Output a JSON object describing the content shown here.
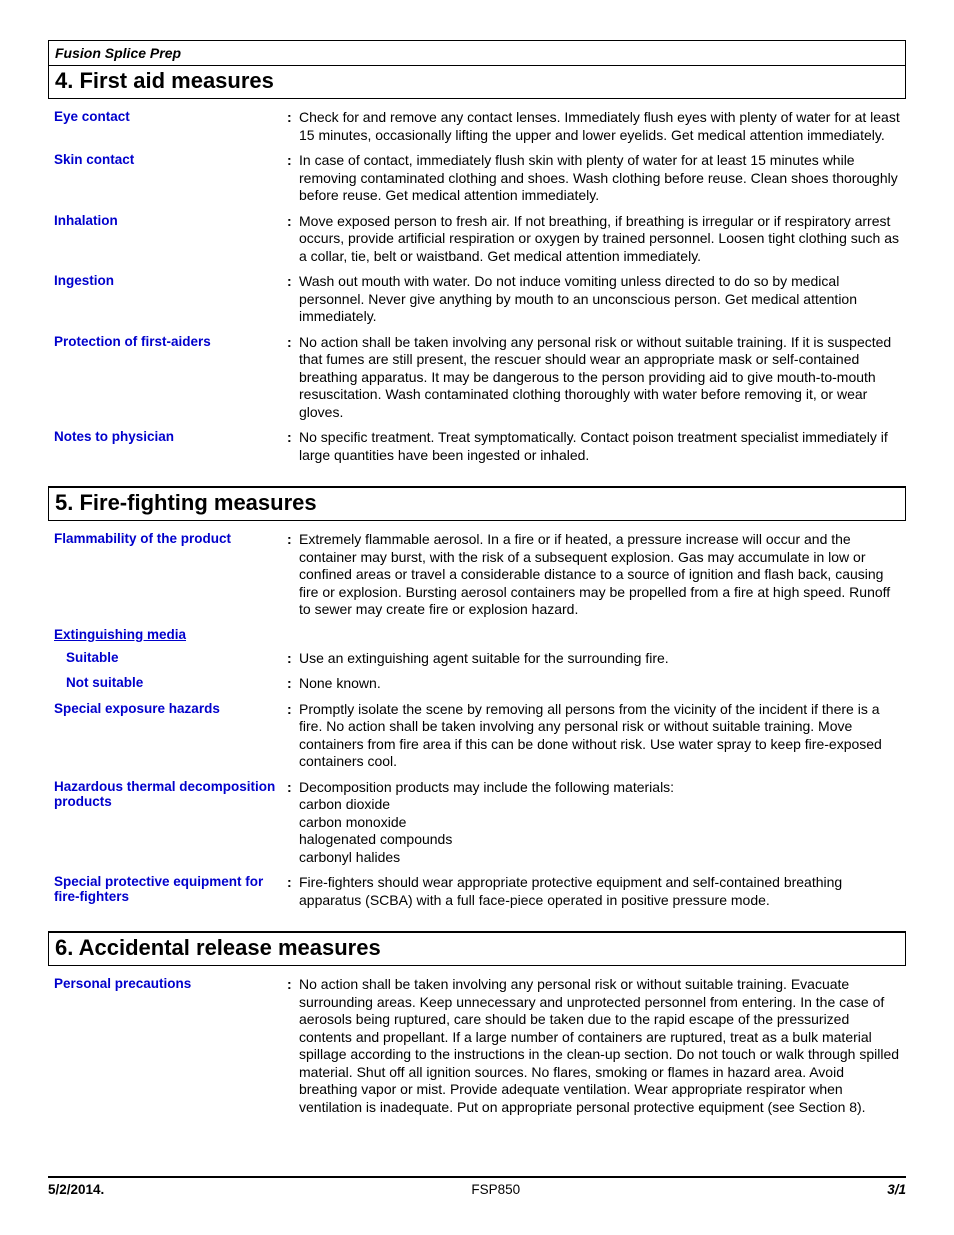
{
  "document": {
    "product_name": "Fusion Splice Prep"
  },
  "sections": {
    "first_aid": {
      "heading": "4. First aid measures",
      "rows": [
        {
          "label": "Eye contact",
          "value": "Check for and remove any contact lenses.  Immediately flush eyes with plenty of water for at least 15 minutes, occasionally lifting the upper and lower eyelids.  Get medical attention immediately."
        },
        {
          "label": "Skin contact",
          "value": "In case of contact, immediately flush skin with plenty of water for at least 15 minutes while removing contaminated clothing and shoes.  Wash clothing before reuse.  Clean shoes thoroughly before reuse.  Get medical attention immediately."
        },
        {
          "label": "Inhalation",
          "value": "Move exposed person to fresh air.  If not breathing, if breathing is irregular or if respiratory arrest occurs, provide artificial respiration or oxygen by trained personnel.  Loosen tight clothing such as a collar, tie, belt or waistband.  Get medical attention immediately."
        },
        {
          "label": "Ingestion",
          "value": "Wash out mouth with water.  Do not induce vomiting unless directed to do so by medical personnel.  Never give anything by mouth to an unconscious person.  Get medical attention immediately."
        },
        {
          "label": "Protection of first-aiders",
          "value": "No action shall be taken involving any personal risk or without suitable training.  If it is suspected that fumes are still present, the rescuer should wear an appropriate mask or self-contained breathing apparatus.  It may be dangerous to the person providing aid to give mouth-to-mouth resuscitation.  Wash contaminated clothing thoroughly with water before removing it, or wear gloves."
        },
        {
          "label": "Notes to physician",
          "value": "No specific treatment.  Treat symptomatically.  Contact poison treatment specialist immediately if large quantities have been ingested or inhaled."
        }
      ]
    },
    "fire_fighting": {
      "heading": "5. Fire-fighting measures",
      "flammability": {
        "label": "Flammability of the product",
        "value": "Extremely flammable aerosol.  In a fire or if heated, a pressure increase will occur and the container may burst, with the risk of a subsequent explosion.  Gas may accumulate in low or confined areas or travel a considerable distance to a source of ignition and flash back, causing fire or explosion.  Bursting aerosol containers may be propelled from a fire at high speed.  Runoff to sewer may create fire or explosion hazard."
      },
      "extinguishing_header": "Extinguishing media",
      "suitable": {
        "label": "Suitable",
        "value": "Use an extinguishing agent suitable for the surrounding fire."
      },
      "not_suitable": {
        "label": "Not suitable",
        "value": "None known."
      },
      "special_exposure": {
        "label": "Special exposure hazards",
        "value": "Promptly isolate the scene by removing all persons from the vicinity of the incident if there is a fire.  No action shall be taken involving any personal risk or without suitable training.  Move containers from fire area if this can be done without risk.  Use water spray to keep fire-exposed containers cool."
      },
      "hazardous_thermal": {
        "label": "Hazardous thermal decomposition products",
        "value": "Decomposition products may include the following materials:\ncarbon dioxide\ncarbon monoxide\nhalogenated compounds\ncarbonyl halides"
      },
      "special_protective": {
        "label": "Special protective equipment for fire-fighters",
        "value": "Fire-fighters should wear appropriate protective equipment and self-contained breathing apparatus (SCBA) with a full face-piece operated in positive pressure mode."
      }
    },
    "accidental_release": {
      "heading": "6. Accidental release measures",
      "personal_precautions": {
        "label": "Personal precautions",
        "value": "No action shall be taken involving any personal risk or without suitable training.  Evacuate surrounding areas.  Keep unnecessary and unprotected personnel from entering.  In the case of aerosols being ruptured, care should be taken due to the rapid escape of the pressurized contents and propellant.  If a large number of containers are ruptured, treat as a bulk material spillage according to the instructions in the clean-up section.  Do not touch or walk through spilled material.  Shut off all ignition sources.  No flares, smoking or flames in hazard area.  Avoid breathing vapor or mist.  Provide adequate ventilation.  Wear appropriate respirator when ventilation is inadequate.  Put on appropriate personal protective equipment (see Section 8)."
      }
    }
  },
  "footer": {
    "date": "5/2/2014.",
    "code": "FSP850",
    "page": "3/1"
  }
}
